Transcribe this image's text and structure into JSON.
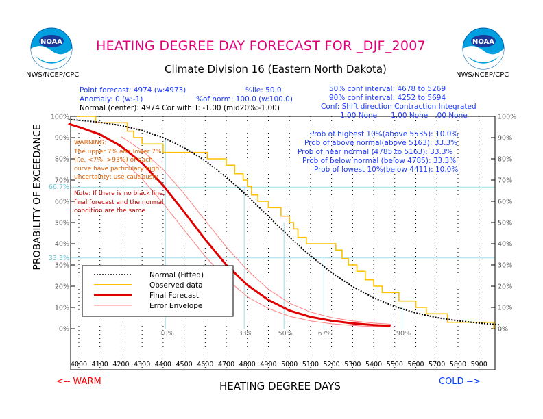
{
  "header": {
    "title": "HEATING DEGREE DAY FORECAST FOR _DJF_2007",
    "subtitle": "Climate Division 16 (Eastern North Dakota)",
    "org_left": "NWS/NCEP/CPC",
    "org_right": "NWS/NCEP/CPC",
    "logo_text": "NOAA"
  },
  "info_left": {
    "line1": "Point forecast: 4974 (w:4973)",
    "line1b": "%ile: 50.0",
    "line2": "Anomaly: 0 (w:-1)",
    "line2b": "%of norm:  100.0 (w:100.0)",
    "line3": "Normal (center): 4974 Cor with T: -1.00 (mid20%:-1.00)"
  },
  "info_right": {
    "conf50": "50% conf interval: 4678 to 5269",
    "conf90": "90% conf interval: 4252 to 5694",
    "conf_hdr": "Conf: Shift direction  Contraction  Integrated",
    "conf_vals": "1.00 None      1.00 None   .00 None",
    "prob1": "Prob of highest 10%(above 5535): 10.0%",
    "prob2": "Prob of above normal(above 5163): 33.3%",
    "prob3": "Prob of near normal (4785 to 5163): 33.3%",
    "prob4": "Prob of below normal (below 4785): 33.3%",
    "prob5": "Prob of lowest 10%(below 4411): 10.0%"
  },
  "warning": {
    "l1": "WARNING:",
    "l2": "The upper 7% and lower 7%",
    "l3": "(i.e. <7%, >93%) of each",
    "l4": "curve have particulary high",
    "l5": "uncertainty; use cautiously."
  },
  "note": {
    "l1": "Note: If there is no black line,",
    "l2": "final forecast and  the normal",
    "l3": "condition are the same"
  },
  "axes": {
    "ylabel": "PROBABILITY OF EXCEEDANCE",
    "xlabel": "HEATING DEGREE DAYS",
    "warm": "<-- WARM",
    "cold": "COLD -->"
  },
  "legend": {
    "normal": "Normal (Fitted)",
    "observed": "Observed data",
    "forecast": "Final Forecast",
    "envelope": "Error Envelope"
  },
  "colors": {
    "normal": "#000000",
    "observed": "#ffc000",
    "forecast": "#e00000",
    "envelope": "#ff8080",
    "ref_lines": "#9fdde8",
    "title": "#e0007a"
  },
  "chart_data": {
    "type": "line",
    "xlabel": "HEATING DEGREE DAYS",
    "ylabel": "PROBABILITY OF EXCEEDANCE",
    "xlim": [
      3950,
      6000
    ],
    "ylim": [
      -15,
      100
    ],
    "x_ticks": [
      4000,
      4100,
      4200,
      4300,
      4400,
      4500,
      4600,
      4700,
      4800,
      4900,
      5000,
      5100,
      5200,
      5300,
      5400,
      5500,
      5600,
      5700,
      5800,
      5900
    ],
    "y_ticks": [
      0,
      10,
      20,
      30,
      40,
      50,
      60,
      70,
      80,
      90,
      100
    ],
    "y_tick_labels": [
      "0%",
      "10%",
      "20%",
      "30%",
      "40%",
      "50%",
      "60%",
      "70%",
      "80%",
      "90%",
      "100%"
    ],
    "ref_h_lines": [
      {
        "y": 66.7,
        "label": "66.7%"
      },
      {
        "y": 33.3,
        "label": "33.3%"
      }
    ],
    "ref_v_lines": [
      {
        "x": 4411,
        "label": "10%"
      },
      {
        "x": 4785,
        "label": "33%"
      },
      {
        "x": 4974,
        "label": "50%"
      },
      {
        "x": 5163,
        "label": "67%"
      },
      {
        "x": 5535,
        "label": "90%"
      }
    ],
    "series": [
      {
        "name": "Normal (Fitted)",
        "style": "dotted",
        "x": [
          3950,
          4000,
          4100,
          4200,
          4300,
          4400,
          4500,
          4600,
          4700,
          4800,
          4900,
          5000,
          5100,
          5200,
          5300,
          5400,
          5500,
          5600,
          5700,
          5800,
          5900,
          6000
        ],
        "y": [
          98.5,
          98.2,
          97.2,
          95.7,
          93.4,
          90.0,
          85.3,
          79.1,
          71.4,
          62.5,
          52.9,
          43.2,
          34.3,
          26.4,
          19.8,
          14.5,
          10.4,
          7.4,
          5.2,
          3.7,
          2.6,
          1.8
        ]
      },
      {
        "name": "Observed data",
        "style": "step",
        "x": [
          3990,
          4030,
          4080,
          4200,
          4230,
          4260,
          4300,
          4350,
          4400,
          4450,
          4500,
          4560,
          4610,
          4640,
          4700,
          4740,
          4780,
          4800,
          4820,
          4850,
          4900,
          4960,
          5000,
          5020,
          5040,
          5080,
          5130,
          5190,
          5220,
          5250,
          5280,
          5320,
          5360,
          5400,
          5440,
          5480,
          5520,
          5550,
          5600,
          5650,
          5700,
          5750,
          5800,
          5850,
          5900,
          5950,
          5970
        ],
        "y": [
          100,
          100,
          97,
          97,
          93,
          90,
          87,
          87,
          83,
          83,
          83,
          83,
          80,
          80,
          77,
          73,
          70,
          67,
          63,
          60,
          57,
          53,
          50,
          47,
          43,
          40,
          40,
          40,
          37,
          33,
          30,
          27,
          23,
          20,
          17,
          17,
          13,
          13,
          10,
          7,
          7,
          3,
          3,
          3,
          3,
          3,
          0
        ]
      },
      {
        "name": "Final Forecast",
        "style": "solid",
        "x": [
          3950,
          4000,
          4100,
          4200,
          4300,
          4400,
          4500,
          4600,
          4700,
          4800,
          4900,
          5000,
          5100,
          5200,
          5300,
          5400,
          5480
        ],
        "y": [
          96.5,
          95.0,
          91.5,
          86.0,
          78.0,
          67.5,
          55.0,
          42.0,
          30.0,
          20.5,
          13.5,
          8.5,
          5.5,
          3.7,
          2.5,
          1.7,
          1.3
        ]
      },
      {
        "name": "Error Envelope (upper)",
        "style": "thin",
        "x": [
          4200,
          4300,
          4400,
          4500,
          4600,
          4700,
          4800,
          4900,
          5000,
          5100,
          5200,
          5300,
          5400,
          5480
        ],
        "y": [
          90.5,
          84.0,
          75.0,
          63.5,
          51.0,
          38.5,
          27.5,
          18.5,
          12.0,
          7.8,
          5.2,
          3.6,
          2.6,
          2.1
        ]
      },
      {
        "name": "Error Envelope (lower)",
        "style": "thin",
        "x": [
          4200,
          4300,
          4400,
          4500,
          4600,
          4700,
          4800,
          4900,
          5000,
          5100,
          5200,
          5300,
          5400,
          5480
        ],
        "y": [
          80.0,
          70.5,
          59.0,
          46.5,
          34.0,
          23.5,
          15.0,
          9.5,
          5.8,
          3.6,
          2.3,
          1.5,
          1.0,
          0.8
        ]
      }
    ]
  }
}
